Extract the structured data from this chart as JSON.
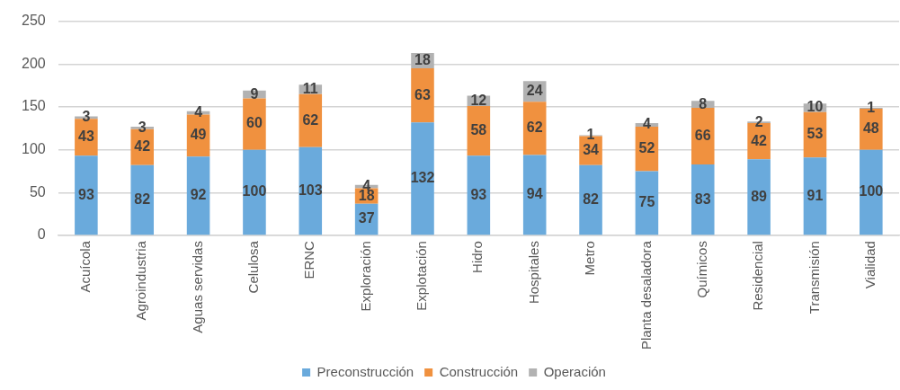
{
  "chart_data": {
    "type": "bar",
    "stacked": true,
    "categories": [
      "Acuícola",
      "Agroindustria",
      "Aguas servidas",
      "Celulosa",
      "ERNC",
      "Exploración",
      "Explotación",
      "Hidro",
      "Hospitales",
      "Metro",
      "Planta desaladora",
      "Químicos",
      "Residencial",
      "Transmisión",
      "Vialidad"
    ],
    "series": [
      {
        "name": "Preconstrucción",
        "color": "#6aaadc",
        "values": [
          93,
          82,
          92,
          100,
          103,
          37,
          132,
          93,
          94,
          82,
          75,
          83,
          89,
          91,
          100
        ]
      },
      {
        "name": "Construcción",
        "color": "#f0913f",
        "values": [
          43,
          42,
          49,
          60,
          62,
          18,
          63,
          58,
          62,
          34,
          52,
          66,
          42,
          53,
          48
        ]
      },
      {
        "name": "Operación",
        "color": "#b2b2b2",
        "values": [
          3,
          3,
          4,
          9,
          11,
          4,
          18,
          12,
          24,
          1,
          4,
          8,
          2,
          10,
          1
        ]
      }
    ],
    "ylim": [
      0,
      250
    ],
    "yticks": [
      0,
      50,
      100,
      150,
      200,
      250
    ],
    "grid": "y",
    "legend": "bottom",
    "data_labels": true
  }
}
